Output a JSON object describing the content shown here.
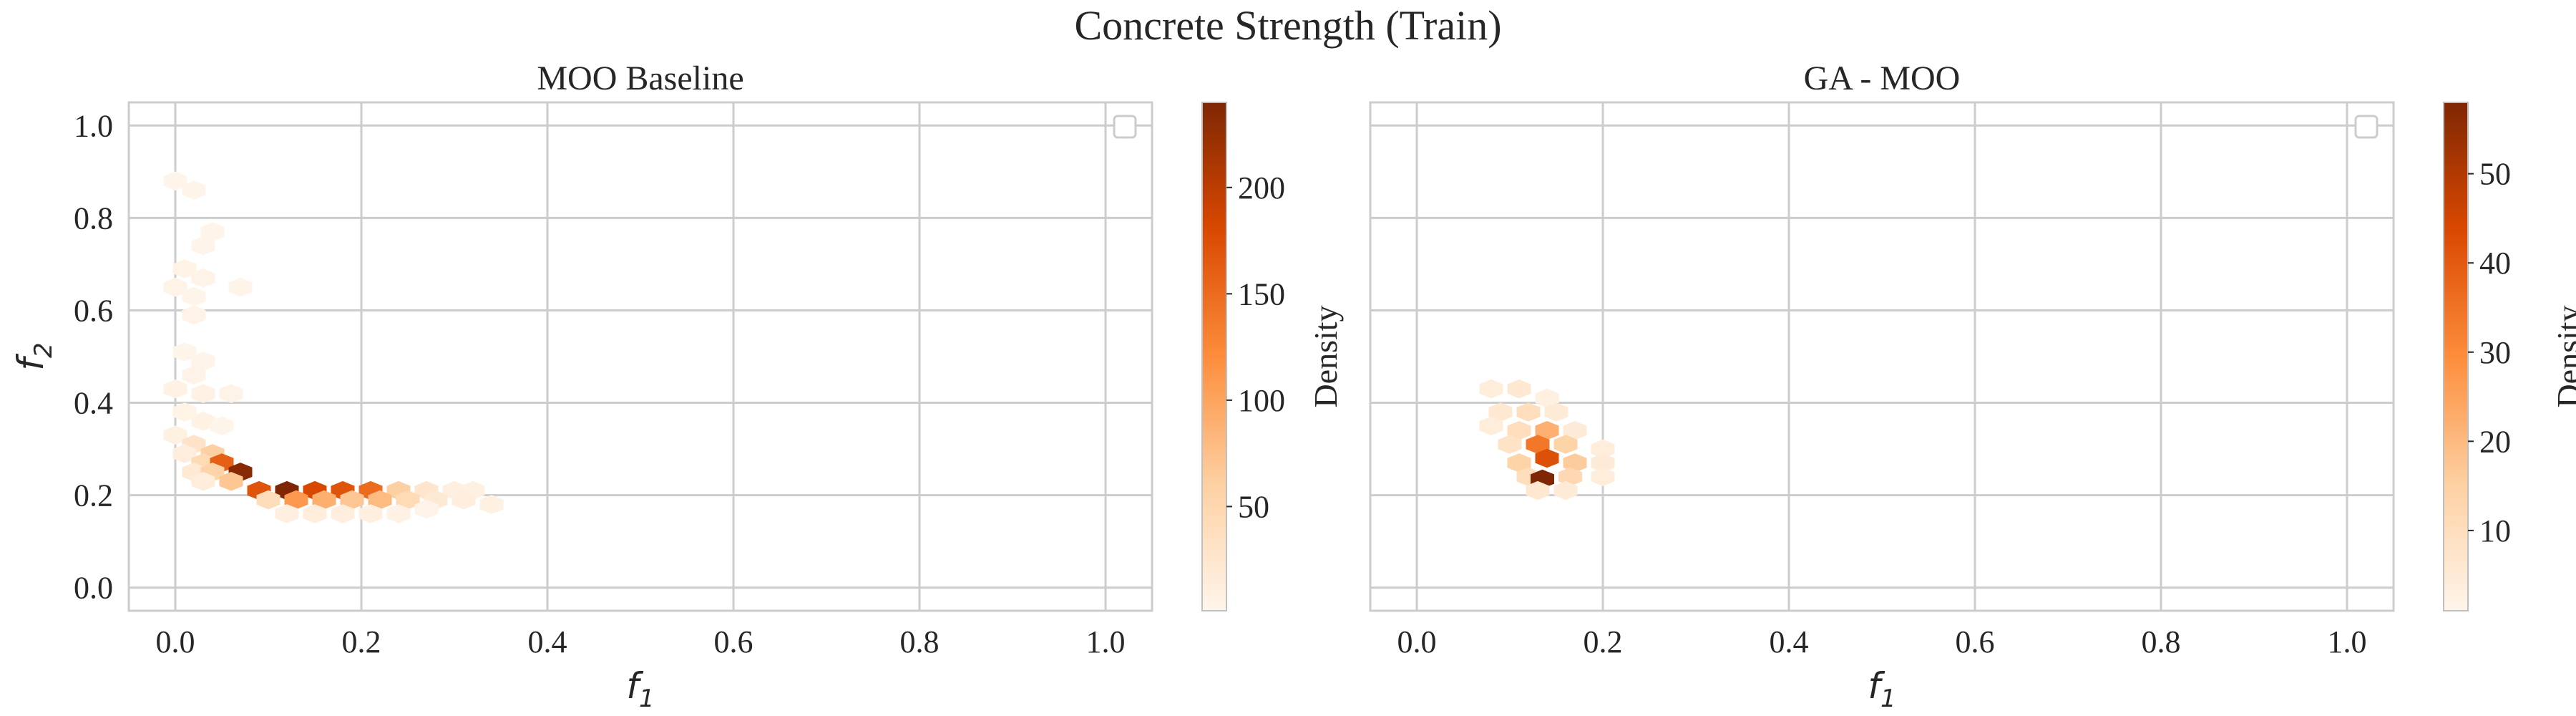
{
  "chart_data": {
    "suptitle": "Concrete Strength (Train)",
    "panels": [
      {
        "type": "hexbin",
        "title": "MOO Baseline",
        "xlabel_base": "f",
        "xlabel_sub": "1",
        "ylabel_base": "f",
        "ylabel_sub": "2",
        "xlim": [
          -0.05,
          1.05
        ],
        "ylim": [
          -0.05,
          1.05
        ],
        "xticks": [
          0.0,
          0.2,
          0.4,
          0.6,
          0.8,
          1.0
        ],
        "xticklabels": [
          "0.0",
          "0.2",
          "0.4",
          "0.6",
          "0.8",
          "1.0"
        ],
        "yticks": [
          0.0,
          0.2,
          0.4,
          0.6,
          0.8,
          1.0
        ],
        "yticklabels": [
          "0.0",
          "0.2",
          "0.4",
          "0.6",
          "0.8",
          "1.0"
        ],
        "grid": true,
        "legend": "upper right (empty)",
        "colorbar": {
          "label": "Density",
          "min": 1,
          "max": 240,
          "ticks": [
            50,
            100,
            150,
            200
          ],
          "ticklabels": [
            "50",
            "100",
            "150",
            "200"
          ],
          "cmap": [
            "#fff5eb",
            "#fdd0a2",
            "#fd8d3c",
            "#d94801",
            "#7f2704"
          ]
        },
        "points": [
          [
            0.0,
            0.88,
            3
          ],
          [
            0.02,
            0.86,
            2
          ],
          [
            0.04,
            0.77,
            3
          ],
          [
            0.03,
            0.74,
            2
          ],
          [
            0.01,
            0.69,
            5
          ],
          [
            0.03,
            0.67,
            4
          ],
          [
            0.0,
            0.65,
            4
          ],
          [
            0.02,
            0.63,
            3
          ],
          [
            0.07,
            0.65,
            2
          ],
          [
            0.02,
            0.59,
            4
          ],
          [
            0.01,
            0.51,
            3
          ],
          [
            0.03,
            0.49,
            3
          ],
          [
            0.02,
            0.46,
            4
          ],
          [
            0.0,
            0.43,
            6
          ],
          [
            0.03,
            0.42,
            6
          ],
          [
            0.06,
            0.42,
            4
          ],
          [
            0.01,
            0.38,
            5
          ],
          [
            0.03,
            0.36,
            6
          ],
          [
            0.05,
            0.35,
            3
          ],
          [
            0.0,
            0.33,
            8
          ],
          [
            0.02,
            0.31,
            30
          ],
          [
            0.04,
            0.29,
            60
          ],
          [
            0.01,
            0.29,
            12
          ],
          [
            0.03,
            0.27,
            45
          ],
          [
            0.05,
            0.27,
            160
          ],
          [
            0.02,
            0.25,
            20
          ],
          [
            0.04,
            0.25,
            55
          ],
          [
            0.07,
            0.25,
            235
          ],
          [
            0.03,
            0.23,
            15
          ],
          [
            0.06,
            0.23,
            70
          ],
          [
            0.09,
            0.21,
            170
          ],
          [
            0.12,
            0.21,
            240
          ],
          [
            0.15,
            0.21,
            180
          ],
          [
            0.18,
            0.21,
            170
          ],
          [
            0.21,
            0.21,
            150
          ],
          [
            0.24,
            0.21,
            60
          ],
          [
            0.27,
            0.21,
            25
          ],
          [
            0.3,
            0.21,
            10
          ],
          [
            0.32,
            0.21,
            8
          ],
          [
            0.1,
            0.19,
            40
          ],
          [
            0.13,
            0.19,
            110
          ],
          [
            0.16,
            0.19,
            90
          ],
          [
            0.19,
            0.19,
            70
          ],
          [
            0.22,
            0.19,
            80
          ],
          [
            0.25,
            0.19,
            45
          ],
          [
            0.28,
            0.19,
            20
          ],
          [
            0.31,
            0.19,
            12
          ],
          [
            0.34,
            0.18,
            8
          ],
          [
            0.12,
            0.16,
            10
          ],
          [
            0.15,
            0.16,
            15
          ],
          [
            0.18,
            0.16,
            12
          ],
          [
            0.21,
            0.16,
            10
          ],
          [
            0.24,
            0.16,
            6
          ],
          [
            0.27,
            0.17,
            4
          ]
        ]
      },
      {
        "type": "hexbin",
        "title": "GA - MOO",
        "xlabel_base": "f",
        "xlabel_sub": "1",
        "xlim": [
          -0.05,
          1.05
        ],
        "ylim": [
          -0.05,
          1.05
        ],
        "xticks": [
          0.0,
          0.2,
          0.4,
          0.6,
          0.8,
          1.0
        ],
        "xticklabels": [
          "0.0",
          "0.2",
          "0.4",
          "0.6",
          "0.8",
          "1.0"
        ],
        "grid": true,
        "legend": "upper right (empty)",
        "colorbar": {
          "label": "Density",
          "min": 1,
          "max": 58,
          "ticks": [
            10,
            20,
            30,
            40,
            50
          ],
          "ticklabels": [
            "10",
            "20",
            "30",
            "40",
            "50"
          ],
          "cmap": [
            "#fff5eb",
            "#fdd0a2",
            "#fd8d3c",
            "#d94801",
            "#7f2704"
          ]
        },
        "points": [
          [
            0.08,
            0.43,
            4
          ],
          [
            0.11,
            0.43,
            6
          ],
          [
            0.14,
            0.41,
            3
          ],
          [
            0.09,
            0.38,
            6
          ],
          [
            0.12,
            0.38,
            10
          ],
          [
            0.15,
            0.38,
            5
          ],
          [
            0.08,
            0.35,
            4
          ],
          [
            0.11,
            0.34,
            10
          ],
          [
            0.14,
            0.34,
            22
          ],
          [
            0.17,
            0.34,
            5
          ],
          [
            0.1,
            0.31,
            8
          ],
          [
            0.13,
            0.31,
            34
          ],
          [
            0.16,
            0.31,
            14
          ],
          [
            0.2,
            0.3,
            4
          ],
          [
            0.11,
            0.27,
            14
          ],
          [
            0.14,
            0.28,
            42
          ],
          [
            0.17,
            0.27,
            16
          ],
          [
            0.2,
            0.27,
            5
          ],
          [
            0.12,
            0.24,
            10
          ],
          [
            0.135,
            0.235,
            58
          ],
          [
            0.165,
            0.24,
            12
          ],
          [
            0.2,
            0.24,
            4
          ],
          [
            0.13,
            0.21,
            6
          ],
          [
            0.16,
            0.21,
            5
          ]
        ]
      }
    ]
  }
}
